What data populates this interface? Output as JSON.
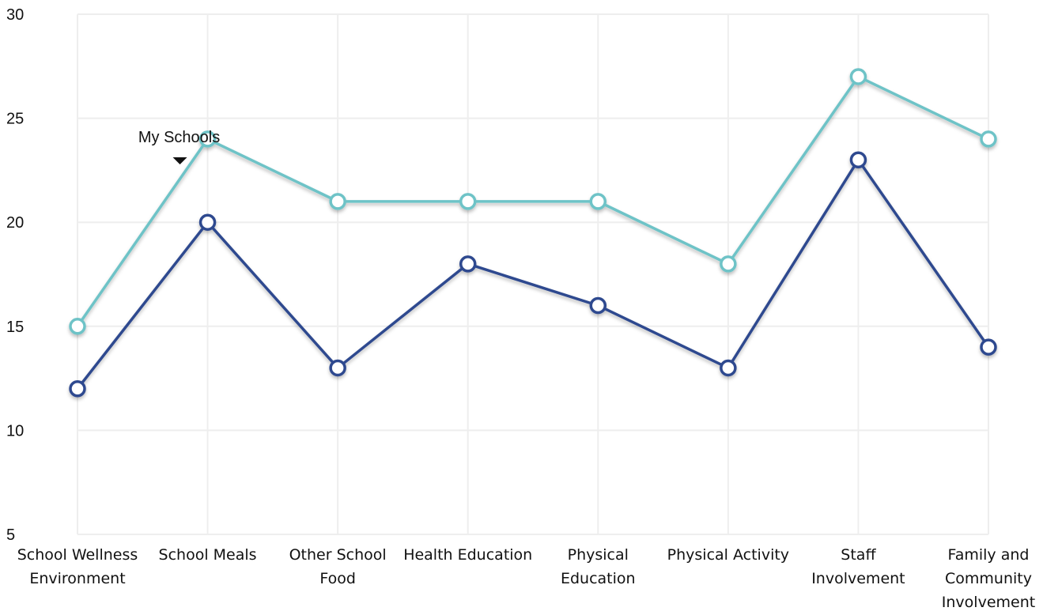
{
  "chart_data": {
    "type": "line",
    "categories": [
      [
        "School Wellness",
        "Environment"
      ],
      [
        "School Meals"
      ],
      [
        "Other School",
        "Food"
      ],
      [
        "Health Education"
      ],
      [
        "Physical",
        "Education"
      ],
      [
        "Physical Activity"
      ],
      [
        "Staff",
        "Involvement"
      ],
      [
        "Family and",
        "Community",
        "Involvement"
      ]
    ],
    "series": [
      {
        "color": "#6ec3c7",
        "values": [
          15,
          24,
          21,
          21,
          21,
          18,
          27,
          24
        ]
      },
      {
        "color": "#2f4a8f",
        "values": [
          12,
          20,
          13,
          18,
          16,
          13,
          23,
          14
        ]
      }
    ],
    "ylim": [
      5,
      30
    ],
    "yticks": [
      5,
      10,
      15,
      20,
      25,
      30
    ],
    "grid": true,
    "annotation": {
      "text": "My Schools",
      "category_index": 1,
      "marker": "down-triangle"
    }
  }
}
